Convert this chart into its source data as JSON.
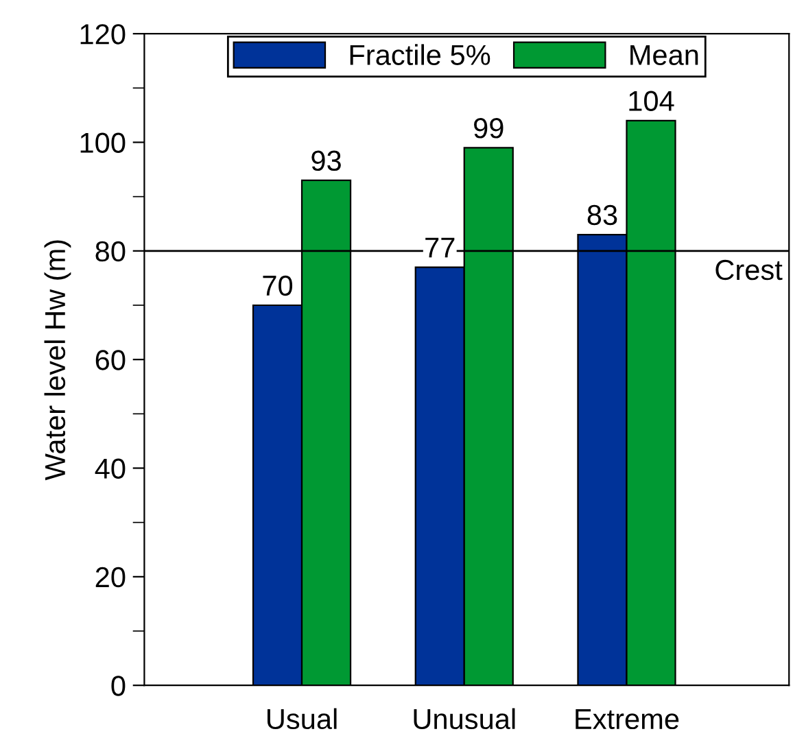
{
  "chart_data": {
    "type": "bar",
    "ylabel": "Water level Hw (m)",
    "categories": [
      "Usual",
      "Unusual",
      "Extreme"
    ],
    "series": [
      {
        "name": "Fractile 5%",
        "color": "#003399",
        "values": [
          70,
          77,
          83
        ]
      },
      {
        "name": "Mean",
        "color": "#009933",
        "values": [
          93,
          99,
          104
        ]
      }
    ],
    "ylim": [
      0,
      120
    ],
    "yticks": [
      0,
      20,
      40,
      60,
      80,
      100,
      120
    ],
    "grid": false,
    "legend": "top",
    "data_labels": true,
    "ref_lines": [
      {
        "axis": "y",
        "value": 80,
        "label": "Crest",
        "color": "#000000"
      }
    ]
  }
}
